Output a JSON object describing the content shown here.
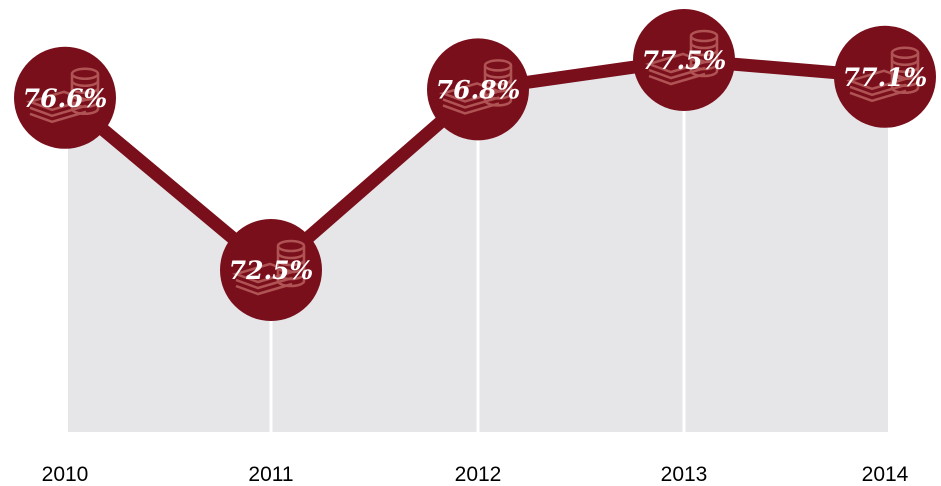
{
  "chart_data": {
    "type": "line",
    "categories": [
      "2010",
      "2011",
      "2012",
      "2013",
      "2014"
    ],
    "values": [
      76.6,
      72.5,
      76.8,
      77.5,
      77.1
    ],
    "value_labels": [
      "76.6%",
      "72.5%",
      "76.8%",
      "77.5%",
      "77.1%"
    ],
    "title": "",
    "xlabel": "",
    "ylabel": "",
    "ylim": [
      65,
      79
    ],
    "grid": false,
    "legend": "none",
    "marker_icon": "coins-and-stacked-bills-icon"
  },
  "colors": {
    "line": "#7a0f1c",
    "marker": "#7a0f1c",
    "marker_icon": "#b65b5b",
    "area": "#e6e6e9",
    "divider": "#ffffff",
    "label": "#ffffff",
    "axis_text": "#000000"
  }
}
